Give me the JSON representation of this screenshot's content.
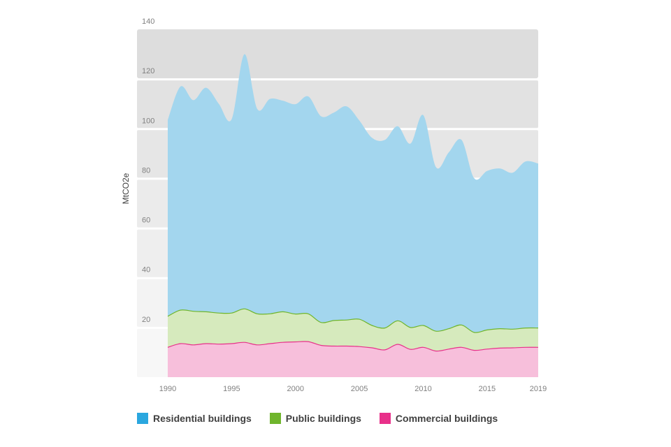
{
  "chart_data": {
    "type": "area",
    "stacked": true,
    "ylabel": "MtCO2e",
    "xlabel": "",
    "ylim": [
      0,
      140
    ],
    "xlim": [
      1990,
      2019
    ],
    "yticks": [
      20,
      40,
      60,
      80,
      100,
      120,
      140
    ],
    "xticks": [
      1990,
      1995,
      2000,
      2005,
      2010,
      2015,
      2019
    ],
    "x": [
      1990,
      1991,
      1992,
      1993,
      1994,
      1995,
      1996,
      1997,
      1998,
      1999,
      2000,
      2001,
      2002,
      2003,
      2004,
      2005,
      2006,
      2007,
      2008,
      2009,
      2010,
      2011,
      2012,
      2013,
      2014,
      2015,
      2016,
      2017,
      2018,
      2019
    ],
    "series": [
      {
        "name": "Commercial buildings",
        "color": "#e8308a",
        "fill": "#f7bfdb",
        "values": [
          12,
          13.5,
          13,
          13.5,
          13.3,
          13.5,
          14,
          13,
          13.5,
          14,
          14.2,
          14.3,
          12.8,
          12.5,
          12.5,
          12.3,
          11.8,
          11,
          13.2,
          11.2,
          12,
          10.5,
          11.3,
          12,
          10.8,
          11.3,
          11.7,
          11.8,
          12,
          12
        ]
      },
      {
        "name": "Public buildings",
        "color": "#6fb52c",
        "fill": "#d6eabd",
        "values": [
          12.5,
          13.5,
          13.5,
          12.8,
          12.5,
          12.3,
          13.5,
          12.5,
          12,
          12.3,
          11.2,
          11.2,
          9.2,
          10.3,
          10.5,
          11,
          9,
          8.8,
          9.5,
          8.8,
          8.8,
          8,
          8.2,
          9,
          7.2,
          7.7,
          7.8,
          7.5,
          7.8,
          7.8
        ]
      },
      {
        "name": "Residential buildings",
        "color": "#2aa7df",
        "fill": "#a3d6ee",
        "values": [
          79,
          90,
          85,
          90.2,
          84.2,
          78,
          102.5,
          82.5,
          86.5,
          85,
          84.5,
          87.5,
          83,
          83.7,
          86,
          80,
          75.5,
          75.7,
          78.3,
          74,
          84.7,
          66,
          71,
          74.5,
          62,
          64,
          64.5,
          63,
          67,
          66.2
        ]
      }
    ],
    "legend_position": "bottom-left",
    "grid": "alternating horizontal bands"
  },
  "legend": {
    "residential": "Residential buildings",
    "public": "Public buildings",
    "commercial": "Commercial buildings"
  }
}
